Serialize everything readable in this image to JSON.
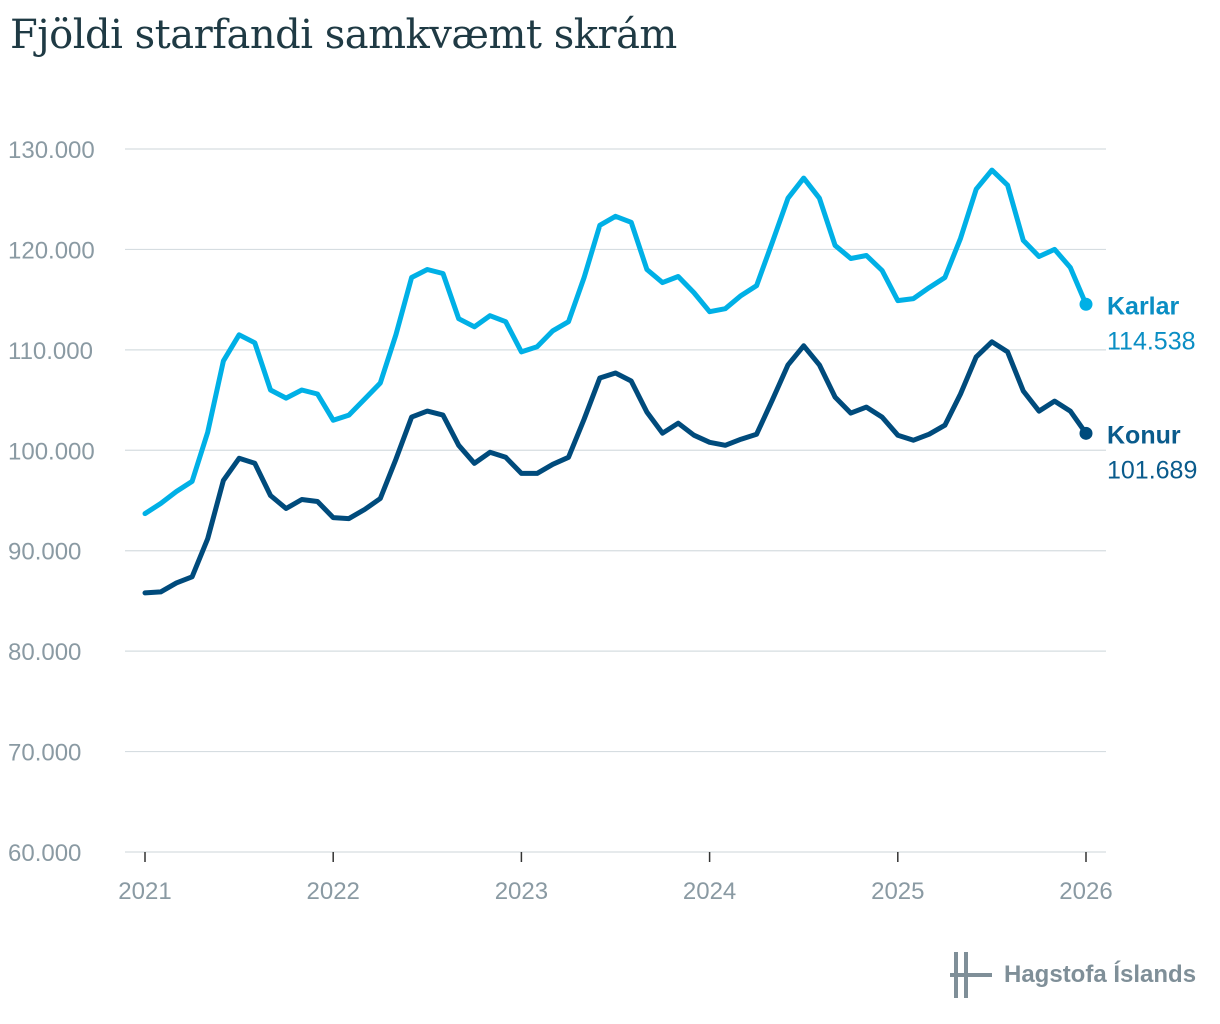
{
  "title": "Fjöldi starfandi samkvæmt skrám",
  "brand": {
    "name": "Hagstofa Íslands",
    "color": "#7f8f98"
  },
  "colors": {
    "karlar": "#00b0e6",
    "konur": "#004b7c",
    "karlar_label": "#0a8ec4",
    "konur_label": "#0a5b8c",
    "grid": "#d6dde1",
    "axis": "#8a9aa3"
  },
  "chart_data": {
    "type": "line",
    "title": "Fjöldi starfandi samkvæmt skrám",
    "xlabel": "",
    "ylabel": "",
    "ylim": [
      60000,
      130000
    ],
    "yticks": [
      60000,
      70000,
      80000,
      90000,
      100000,
      110000,
      120000,
      130000
    ],
    "ytick_labels": [
      "60.000",
      "70.000",
      "80.000",
      "90.000",
      "100.000",
      "110.000",
      "120.000",
      "130.000"
    ],
    "xticks": [
      "2021",
      "2022",
      "2023",
      "2024",
      "2025",
      "2026"
    ],
    "x_start": "2021-01",
    "x_end": "2026-01",
    "grid": true,
    "series": [
      {
        "name": "Karlar",
        "end_label": "114.538",
        "values": [
          93700,
          94700,
          95900,
          96900,
          101800,
          108900,
          111500,
          110700,
          106000,
          105200,
          106000,
          105600,
          103000,
          103500,
          105100,
          106700,
          111500,
          117200,
          118000,
          117600,
          113100,
          112300,
          113400,
          112800,
          109800,
          110300,
          111900,
          112800,
          117200,
          122400,
          123300,
          122700,
          118000,
          116700,
          117300,
          115700,
          113800,
          114100,
          115400,
          116400,
          120700,
          125100,
          127100,
          125100,
          120400,
          119100,
          119400,
          117900,
          114900,
          115100,
          116200,
          117200,
          121100,
          126000,
          127900,
          126400,
          120900,
          119300,
          120000,
          118200,
          114538
        ]
      },
      {
        "name": "Konur",
        "end_label": "101.689",
        "values": [
          85800,
          85900,
          86800,
          87400,
          91200,
          97000,
          99200,
          98700,
          95500,
          94200,
          95100,
          94900,
          93300,
          93200,
          94100,
          95200,
          99100,
          103300,
          103900,
          103500,
          100500,
          98700,
          99800,
          99300,
          97700,
          97700,
          98600,
          99300,
          103100,
          107200,
          107700,
          106900,
          103800,
          101700,
          102700,
          101500,
          100800,
          100500,
          101100,
          101600,
          105000,
          108500,
          110400,
          108500,
          105300,
          103700,
          104300,
          103300,
          101500,
          101000,
          101600,
          102500,
          105600,
          109300,
          110800,
          109800,
          105900,
          103900,
          104900,
          103900,
          101689
        ]
      }
    ]
  }
}
